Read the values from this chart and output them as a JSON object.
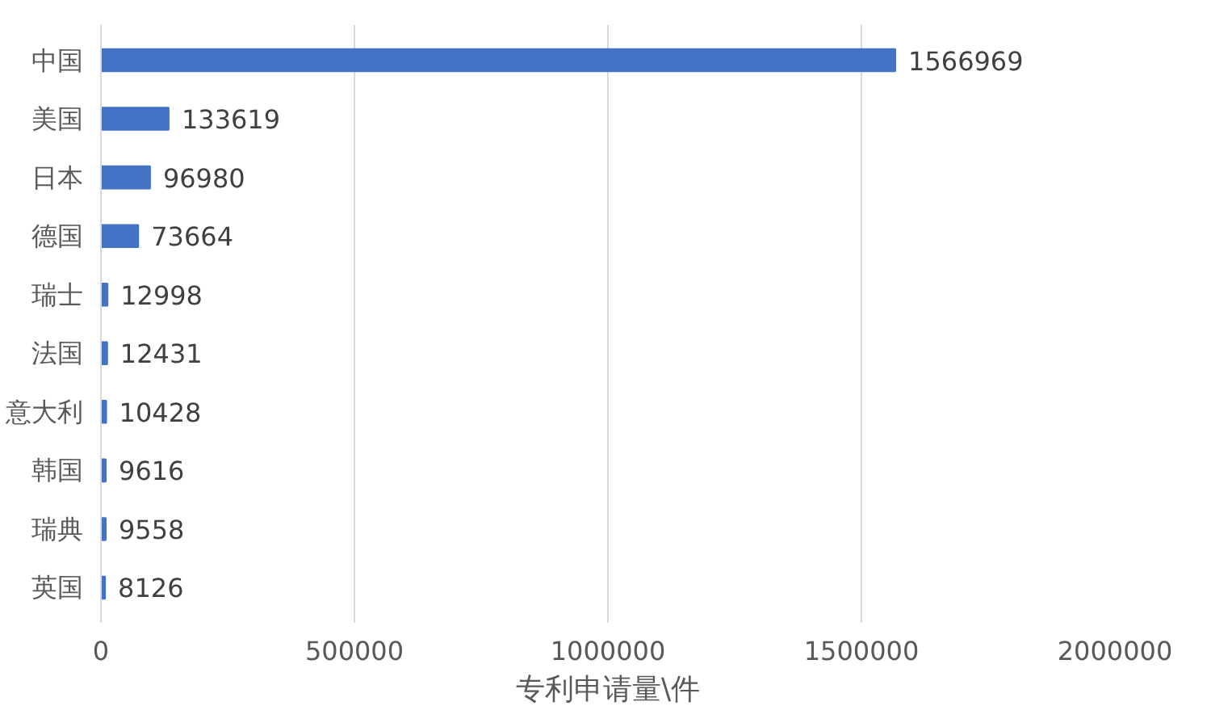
{
  "chart_data": {
    "type": "bar",
    "orientation": "horizontal",
    "xlabel": "专利申请量\\件",
    "categories": [
      "中国",
      "美国",
      "日本",
      "德国",
      "瑞士",
      "法国",
      "意大利",
      "韩国",
      "瑞典",
      "英国"
    ],
    "values": [
      1566969,
      133619,
      96980,
      73664,
      12998,
      12431,
      10428,
      9616,
      9558,
      8126
    ],
    "color": "#4472c4",
    "data_labels": true,
    "xlim": [
      0,
      2000000
    ],
    "xticks": [
      0,
      500000,
      1000000,
      1500000,
      2000000
    ],
    "grid": "x"
  }
}
